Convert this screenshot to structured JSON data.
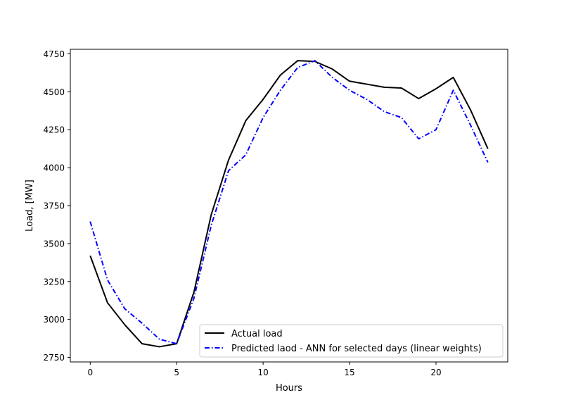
{
  "chart_data": {
    "type": "line",
    "title": "",
    "xlabel": "Hours",
    "ylabel": "Load, [MW]",
    "xlim": [
      -1.15,
      24.15
    ],
    "ylim": [
      2720,
      4780
    ],
    "grid": false,
    "legend_position": "lower-right",
    "x_ticks": [
      0,
      5,
      10,
      15,
      20
    ],
    "y_ticks": [
      2750,
      3000,
      3250,
      3500,
      3750,
      4000,
      4250,
      4500,
      4750
    ],
    "x": [
      0,
      1,
      2,
      3,
      4,
      5,
      6,
      7,
      8,
      9,
      10,
      11,
      12,
      13,
      14,
      15,
      16,
      17,
      18,
      19,
      20,
      21,
      22,
      23
    ],
    "series": [
      {
        "name": "Actual load",
        "color": "#000000",
        "style": "solid",
        "values": [
          3420,
          3110,
          2965,
          2840,
          2820,
          2840,
          3180,
          3690,
          4050,
          4310,
          4450,
          4610,
          4705,
          4700,
          4650,
          4570,
          4550,
          4530,
          4525,
          4455,
          4520,
          4595,
          4380,
          4125
        ]
      },
      {
        "name": "Predicted laod - ANN for selected days (linear weights)",
        "color": "#0000ff",
        "style": "dashdot",
        "values": [
          3645,
          3260,
          3070,
          2975,
          2870,
          2840,
          3140,
          3620,
          3980,
          4085,
          4330,
          4510,
          4660,
          4705,
          4595,
          4510,
          4450,
          4370,
          4330,
          4190,
          4250,
          4510,
          4280,
          4035
        ]
      }
    ]
  }
}
